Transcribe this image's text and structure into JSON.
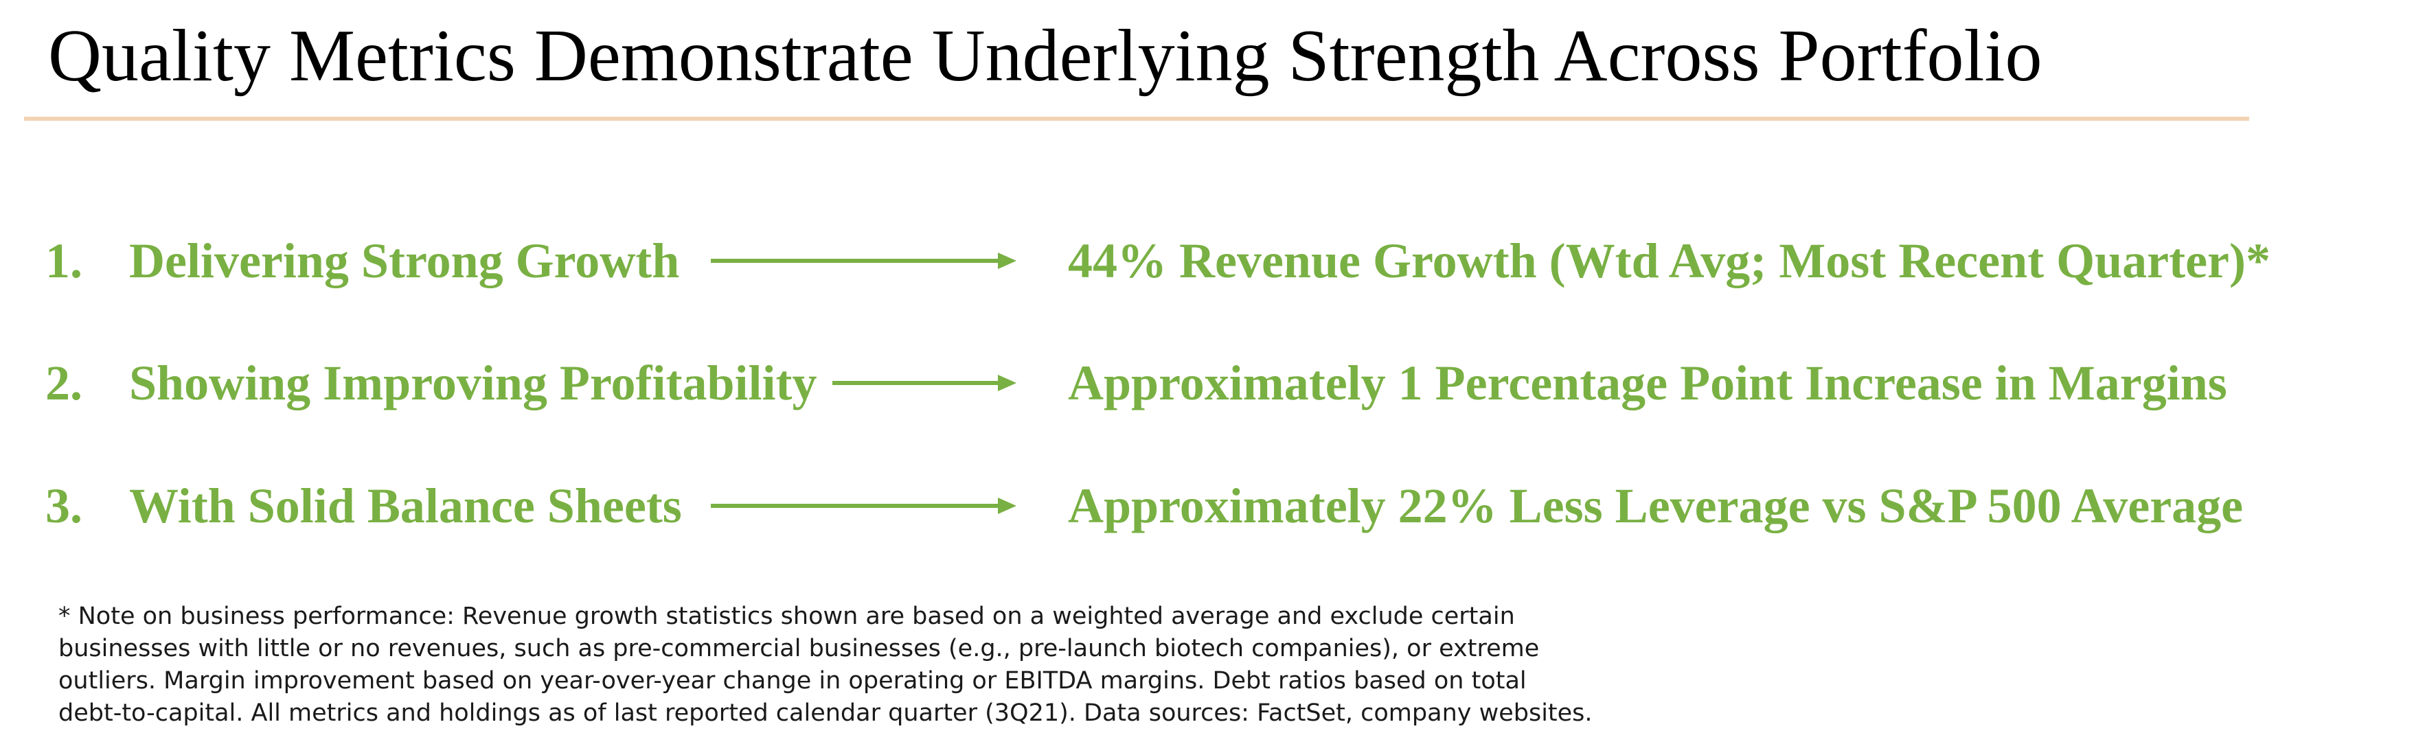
{
  "slide": {
    "title": "Quality Metrics Demonstrate Underlying Strength Across Portfolio"
  },
  "colors": {
    "accent_green": "#79b043",
    "title_rule": "#f3d3b4",
    "title_text": "#000000",
    "footnote_text": "#1a1a1a"
  },
  "metrics": [
    {
      "number": "1.",
      "label": "Delivering Strong Growth",
      "arrow_icon": "right-arrow-icon",
      "result": "44% Revenue Growth (Wtd Avg; Most Recent Quarter)*"
    },
    {
      "number": "2.",
      "label": "Showing Improving Profitability",
      "arrow_icon": "right-arrow-icon",
      "result": "Approximately 1 Percentage Point Increase in Margins"
    },
    {
      "number": "3.",
      "label": "With Solid Balance Sheets",
      "arrow_icon": "right-arrow-icon",
      "result": "Approximately 22% Less Leverage vs S&P 500 Average"
    }
  ],
  "footnote": {
    "lines": [
      "* Note on business performance: Revenue growth statistics shown are based on a weighted average and exclude certain",
      "businesses with little or no revenues, such as pre-commercial businesses (e.g., pre-launch biotech companies), or extreme",
      "outliers. Margin improvement based on year-over-year change in operating or EBITDA margins.  Debt ratios based on total",
      "debt-to-capital.  All metrics and holdings as of last reported calendar quarter (3Q21).  Data sources: FactSet, company websites."
    ]
  }
}
